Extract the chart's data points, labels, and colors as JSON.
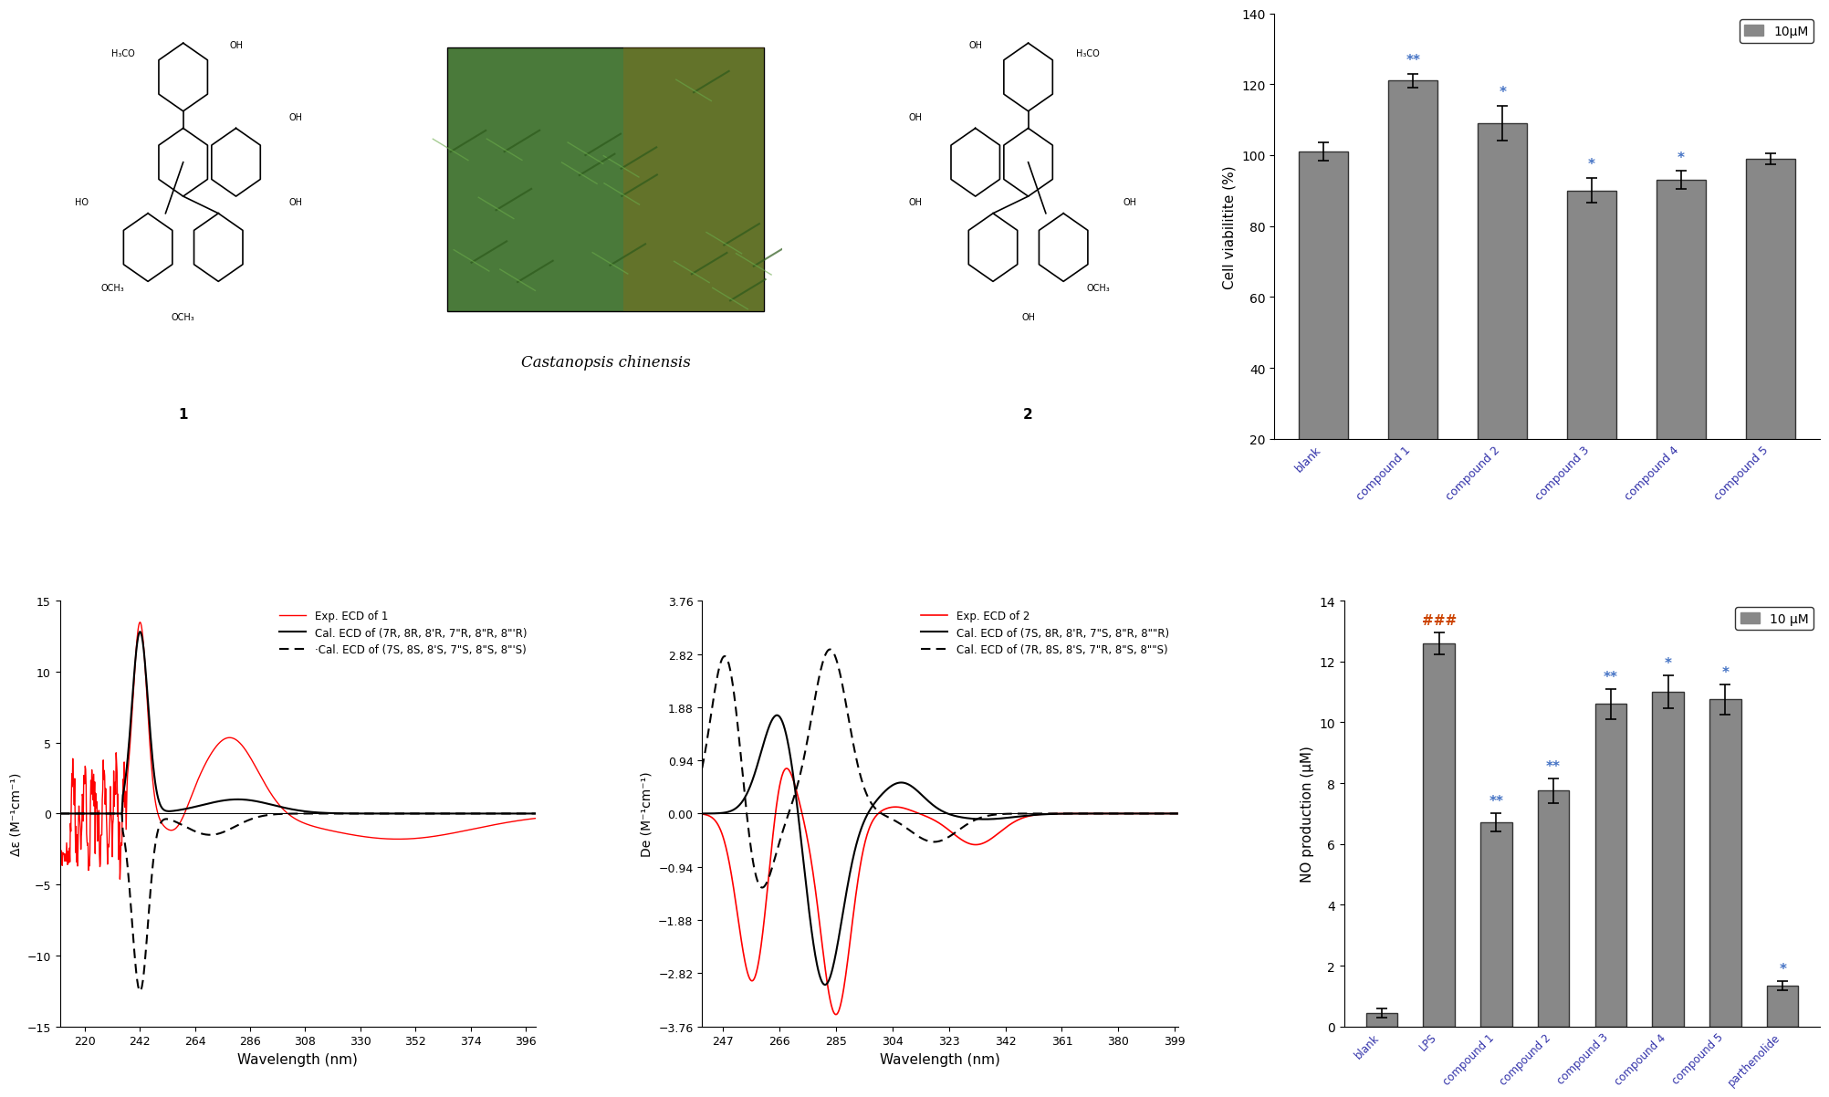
{
  "cell_viability": {
    "categories": [
      "blank",
      "compound 1",
      "compound 2",
      "compound 3",
      "compound 4",
      "compound 5"
    ],
    "values": [
      101,
      121,
      109,
      90,
      93,
      99
    ],
    "errors": [
      2.5,
      2.0,
      5.0,
      3.5,
      2.5,
      1.5
    ],
    "annotations": [
      "",
      "**",
      "*",
      "*",
      "*",
      ""
    ],
    "ylabel": "Cell viabilitite (%)",
    "ylim": [
      20,
      140
    ],
    "yticks": [
      20,
      40,
      60,
      80,
      100,
      120,
      140
    ],
    "legend_label": "10μM",
    "bar_color": "#888888",
    "bar_edgecolor": "#333333"
  },
  "no_production": {
    "categories": [
      "blank",
      "LPS",
      "compound 1",
      "compound 2",
      "compound 3",
      "compound 4",
      "compound 5",
      "parthenolide"
    ],
    "values": [
      0.45,
      12.6,
      6.7,
      7.75,
      10.6,
      11.0,
      10.75,
      1.35
    ],
    "errors": [
      0.15,
      0.35,
      0.3,
      0.4,
      0.5,
      0.55,
      0.5,
      0.15
    ],
    "annotations": [
      "",
      "###",
      "**",
      "**",
      "**",
      "*",
      "*",
      "*"
    ],
    "ylabel": "NO production (μM)",
    "ylim": [
      0,
      14
    ],
    "yticks": [
      0,
      2,
      4,
      6,
      8,
      10,
      12,
      14
    ],
    "legend_label": "10 μM",
    "bar_color": "#888888",
    "bar_edgecolor": "#333333"
  },
  "ecd1": {
    "xlabel": "Wavelength (nm)",
    "ylabel": "Δε (M⁻¹cm⁻¹)",
    "xlim": [
      210,
      400
    ],
    "ylim": [
      -15,
      15
    ],
    "xticks": [
      220,
      242,
      264,
      286,
      308,
      330,
      352,
      374,
      396
    ],
    "yticks": [
      -15,
      -10,
      -5,
      0,
      5,
      10,
      15
    ],
    "legend1": "Exp. ECD of 1",
    "legend2": "Cal. ECD of (7R, 8R, 8'R, 7\"R, 8\"R, 8\"'R)",
    "legend3": "·Cal. ECD of (7S, 8S, 8'S, 7\"S, 8\"S, 8\"'S)"
  },
  "ecd2": {
    "xlabel": "Wavelength (nm)",
    "ylabel": "De (M⁻¹cm⁻¹)",
    "xlim": [
      240,
      400
    ],
    "ylim": [
      -3.76,
      3.76
    ],
    "xticks": [
      247,
      266,
      285,
      304,
      323,
      342,
      361,
      380,
      399
    ],
    "yticks": [
      -3.76,
      -2.82,
      -1.88,
      -0.94,
      0.0,
      0.94,
      1.88,
      2.82,
      3.76
    ],
    "legend1": "Exp. ECD of 2",
    "legend2": "Cal. ECD of (7S, 8R, 8'R, 7\"S, 8\"R, 8\"\"R)",
    "legend3": "Cal. ECD of (7R, 8S, 8'S, 7\"R, 8\"S, 8\"\"S)"
  },
  "annotation_color": "#4472C4",
  "hash_color": "#CC4400",
  "bg_color": "#FFFFFF"
}
